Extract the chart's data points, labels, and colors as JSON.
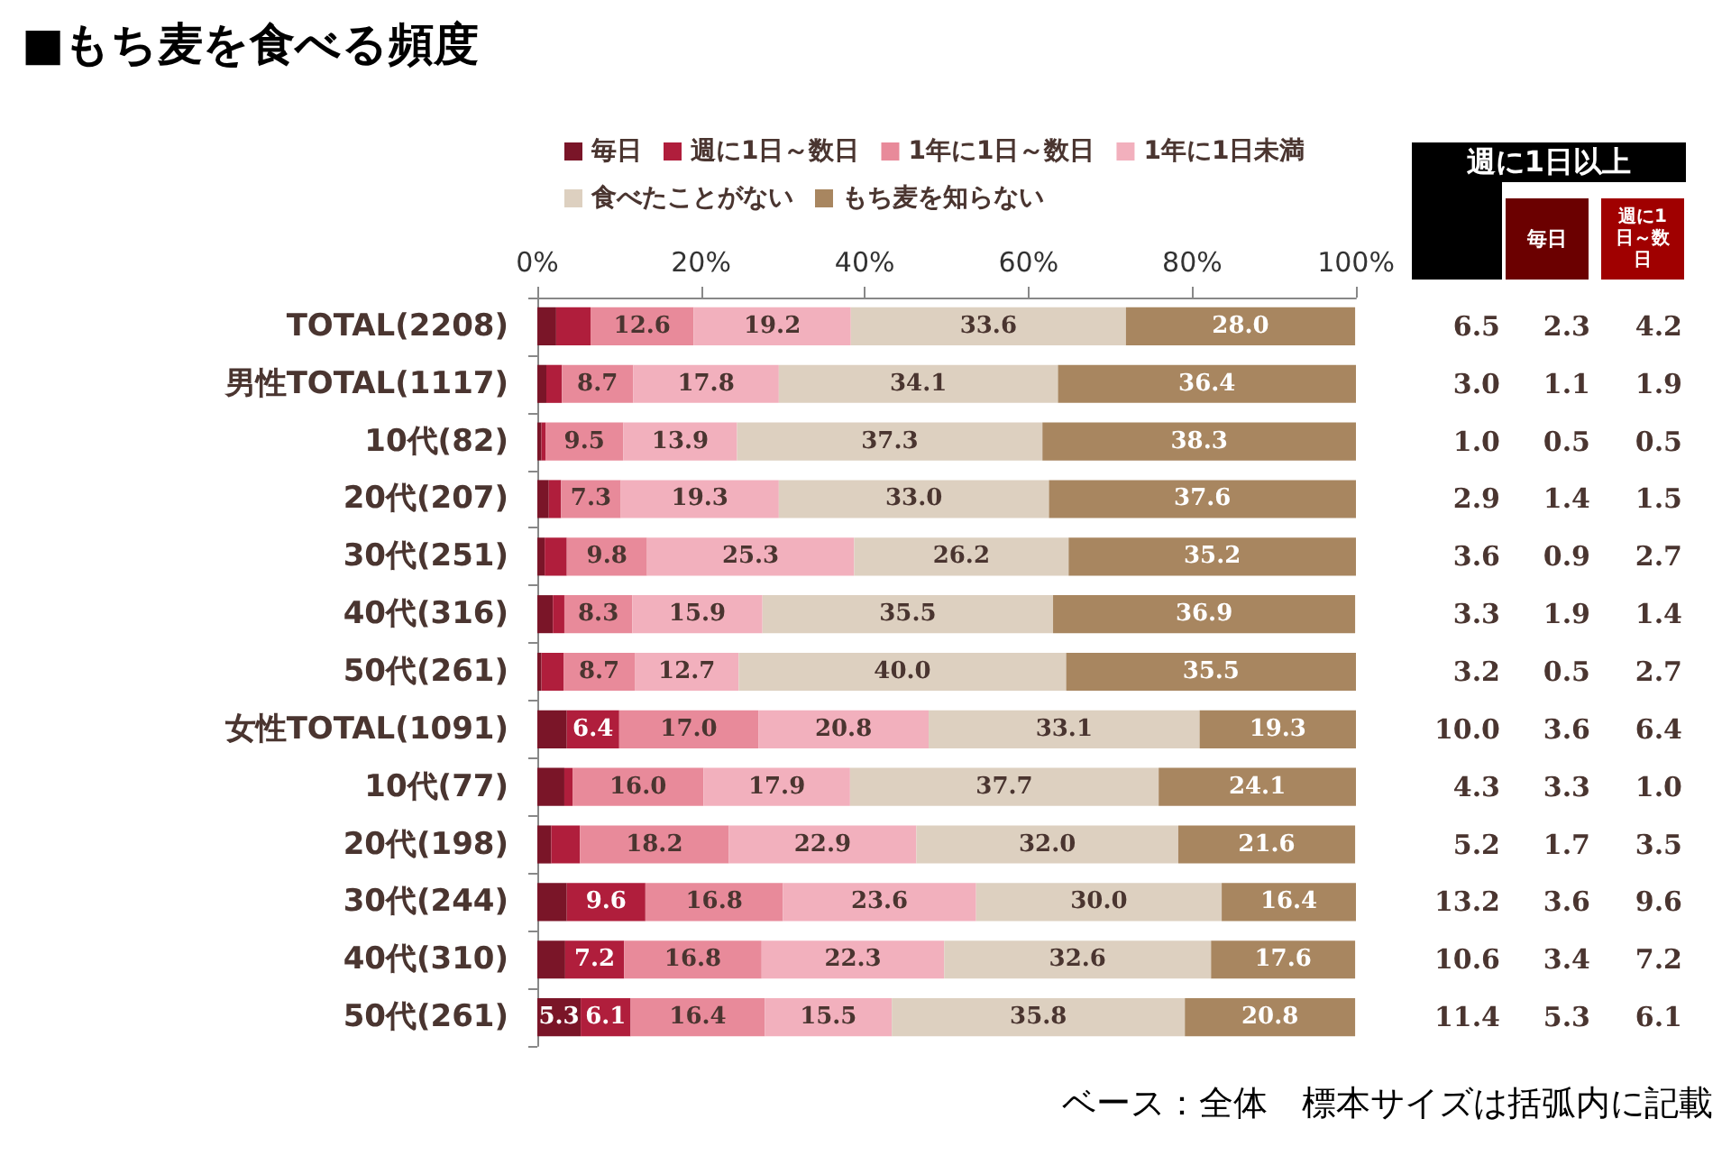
{
  "chart_data": {
    "type": "bar",
    "orientation": "horizontal",
    "stacked": true,
    "title": "■もち麦を食べる頻度",
    "categories": [
      "TOTAL(2208)",
      "男性TOTAL(1117)",
      "10代(82)",
      "20代(207)",
      "30代(251)",
      "40代(316)",
      "50代(261)",
      "女性TOTAL(1091)",
      "10代(77)",
      "20代(198)",
      "30代(244)",
      "40代(310)",
      "50代(261)"
    ],
    "xlim": [
      0,
      100
    ],
    "xticks": [
      {
        "value": 0,
        "label": "0%"
      },
      {
        "value": 20,
        "label": "20%"
      },
      {
        "value": 40,
        "label": "40%"
      },
      {
        "value": 60,
        "label": "60%"
      },
      {
        "value": 80,
        "label": "80%"
      },
      {
        "value": 100,
        "label": "100%"
      }
    ],
    "grid": false,
    "legend": "top",
    "series": [
      {
        "name": "毎日",
        "color": "#7a1528",
        "values": [
          2.3,
          1.1,
          0.5,
          1.4,
          0.9,
          1.9,
          0.5,
          3.6,
          3.3,
          1.7,
          3.6,
          3.4,
          5.3
        ],
        "value_labels": [
          null,
          null,
          null,
          null,
          null,
          null,
          null,
          null,
          null,
          null,
          null,
          null,
          "5.3"
        ]
      },
      {
        "name": "週に1日～数日",
        "color": "#b01e3c",
        "values": [
          4.2,
          1.9,
          0.5,
          1.5,
          2.7,
          1.4,
          2.7,
          6.4,
          1.0,
          3.5,
          9.6,
          7.2,
          6.1
        ],
        "value_labels": [
          null,
          null,
          null,
          null,
          null,
          null,
          null,
          "6.4",
          null,
          null,
          "9.6",
          "7.2",
          "6.1"
        ]
      },
      {
        "name": "1年に1日～数日",
        "color": "#e88a9a",
        "values": [
          12.6,
          8.7,
          9.5,
          7.3,
          9.8,
          8.3,
          8.7,
          17.0,
          16.0,
          18.2,
          16.8,
          16.8,
          16.4
        ],
        "value_labels": [
          "12.6",
          "8.7",
          "9.5",
          "7.3",
          "9.8",
          "8.3",
          "8.7",
          "17.0",
          "16.0",
          "18.2",
          "16.8",
          "16.8",
          "16.4"
        ]
      },
      {
        "name": "1年に1日未満",
        "color": "#f2b0bd",
        "values": [
          19.2,
          17.8,
          13.9,
          19.3,
          25.3,
          15.9,
          12.7,
          20.8,
          17.9,
          22.9,
          23.6,
          22.3,
          15.5
        ],
        "value_labels": [
          "19.2",
          "17.8",
          "13.9",
          "19.3",
          "25.3",
          "15.9",
          "12.7",
          "20.8",
          "17.9",
          "22.9",
          "23.6",
          "22.3",
          "15.5"
        ]
      },
      {
        "name": "食べたことがない",
        "color": "#ddd0c0",
        "values": [
          33.6,
          34.1,
          37.3,
          33.0,
          26.2,
          35.5,
          40.0,
          33.1,
          37.7,
          32.0,
          30.0,
          32.6,
          35.8
        ],
        "value_labels": [
          "33.6",
          "34.1",
          "37.3",
          "33.0",
          "26.2",
          "35.5",
          "40.0",
          "33.1",
          "37.7",
          "32.0",
          "30.0",
          "32.6",
          "35.8"
        ]
      },
      {
        "name": "もち麦を知らない",
        "color": "#a88660",
        "values": [
          28.0,
          36.4,
          38.3,
          37.6,
          35.2,
          36.9,
          35.5,
          19.3,
          24.1,
          21.6,
          16.4,
          17.6,
          20.8
        ],
        "value_labels": [
          "28.0",
          "36.4",
          "38.3",
          "37.6",
          "35.2",
          "36.9",
          "35.5",
          "19.3",
          "24.1",
          "21.6",
          "16.4",
          "17.6",
          "20.8"
        ]
      }
    ],
    "annotations": [
      "週に1日以上",
      "毎日",
      "週に1日～数日",
      "6.5",
      "2.3",
      "4.2",
      "3.0",
      "1.1",
      "1.9",
      "1.0",
      "0.5",
      "0.5",
      "2.9",
      "1.4",
      "1.5",
      "3.6",
      "0.9",
      "2.7",
      "3.3",
      "1.9",
      "1.4",
      "3.2",
      "0.5",
      "2.7",
      "10.0",
      "3.6",
      "6.4",
      "4.3",
      "3.3",
      "1.0",
      "5.2",
      "1.7",
      "3.5",
      "13.2",
      "3.6",
      "9.6",
      "10.6",
      "3.4",
      "7.2",
      "11.4",
      "5.3",
      "6.1",
      "ベース：全体　標本サイズは括弧内に記載"
    ]
  }
}
